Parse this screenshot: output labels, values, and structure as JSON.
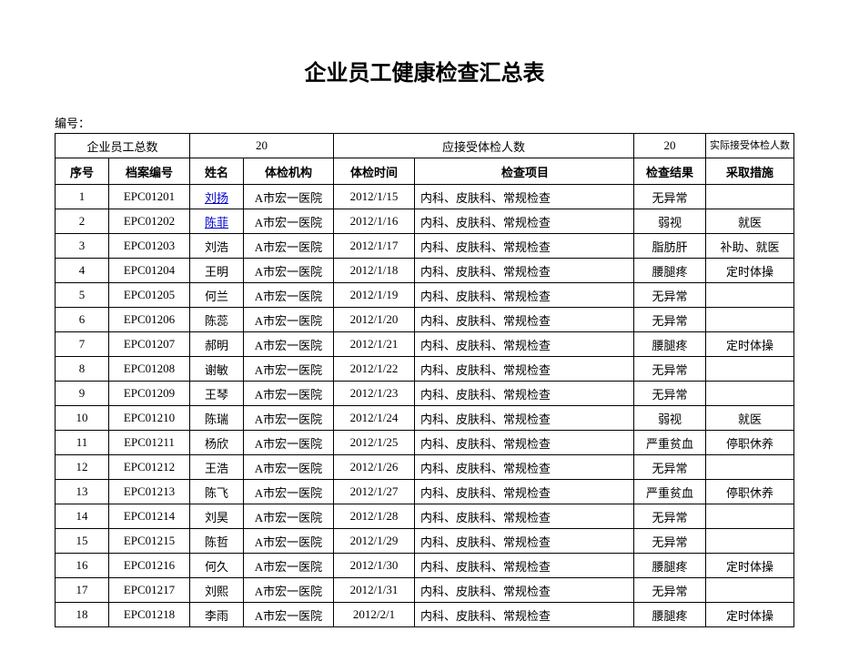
{
  "title": "企业员工健康检查汇总表",
  "doc_label": "编号：",
  "summary": {
    "total_employees_label": "企业员工总数",
    "total_employees_value": "20",
    "should_check_label": "应接受体检人数",
    "should_check_value": "20",
    "actual_check_label": "实际接受体检人数"
  },
  "headers": {
    "seq": "序号",
    "file_no": "档案编号",
    "name": "姓名",
    "org": "体检机构",
    "date": "体检时间",
    "items": "检查项目",
    "result": "检查结果",
    "action": "采取措施"
  },
  "rows": [
    {
      "seq": "1",
      "file_no": "EPC01201",
      "name": "刘扬",
      "is_link": true,
      "org": "A市宏一医院",
      "date": "2012/1/15",
      "items": "内科、皮肤科、常规检查",
      "result": "无异常",
      "action": ""
    },
    {
      "seq": "2",
      "file_no": "EPC01202",
      "name": "陈菲",
      "is_link": true,
      "org": "A市宏一医院",
      "date": "2012/1/16",
      "items": "内科、皮肤科、常规检查",
      "result": "弱视",
      "action": "就医"
    },
    {
      "seq": "3",
      "file_no": "EPC01203",
      "name": "刘浩",
      "is_link": false,
      "org": "A市宏一医院",
      "date": "2012/1/17",
      "items": "内科、皮肤科、常规检查",
      "result": "脂肪肝",
      "action": "补助、就医"
    },
    {
      "seq": "4",
      "file_no": "EPC01204",
      "name": "王明",
      "is_link": false,
      "org": "A市宏一医院",
      "date": "2012/1/18",
      "items": "内科、皮肤科、常规检查",
      "result": "腰腿疼",
      "action": "定时体操"
    },
    {
      "seq": "5",
      "file_no": "EPC01205",
      "name": "何兰",
      "is_link": false,
      "org": "A市宏一医院",
      "date": "2012/1/19",
      "items": "内科、皮肤科、常规检查",
      "result": "无异常",
      "action": ""
    },
    {
      "seq": "6",
      "file_no": "EPC01206",
      "name": "陈蕊",
      "is_link": false,
      "org": "A市宏一医院",
      "date": "2012/1/20",
      "items": "内科、皮肤科、常规检查",
      "result": "无异常",
      "action": ""
    },
    {
      "seq": "7",
      "file_no": "EPC01207",
      "name": "郝明",
      "is_link": false,
      "org": "A市宏一医院",
      "date": "2012/1/21",
      "items": "内科、皮肤科、常规检查",
      "result": "腰腿疼",
      "action": "定时体操"
    },
    {
      "seq": "8",
      "file_no": "EPC01208",
      "name": "谢敏",
      "is_link": false,
      "org": "A市宏一医院",
      "date": "2012/1/22",
      "items": "内科、皮肤科、常规检查",
      "result": "无异常",
      "action": ""
    },
    {
      "seq": "9",
      "file_no": "EPC01209",
      "name": "王琴",
      "is_link": false,
      "org": "A市宏一医院",
      "date": "2012/1/23",
      "items": "内科、皮肤科、常规检查",
      "result": "无异常",
      "action": ""
    },
    {
      "seq": "10",
      "file_no": "EPC01210",
      "name": "陈瑞",
      "is_link": false,
      "org": "A市宏一医院",
      "date": "2012/1/24",
      "items": "内科、皮肤科、常规检查",
      "result": "弱视",
      "action": "就医"
    },
    {
      "seq": "11",
      "file_no": "EPC01211",
      "name": "杨欣",
      "is_link": false,
      "org": "A市宏一医院",
      "date": "2012/1/25",
      "items": "内科、皮肤科、常规检查",
      "result": "严重贫血",
      "action": "停职休养"
    },
    {
      "seq": "12",
      "file_no": "EPC01212",
      "name": "王浩",
      "is_link": false,
      "org": "A市宏一医院",
      "date": "2012/1/26",
      "items": "内科、皮肤科、常规检查",
      "result": "无异常",
      "action": ""
    },
    {
      "seq": "13",
      "file_no": "EPC01213",
      "name": "陈飞",
      "is_link": false,
      "org": "A市宏一医院",
      "date": "2012/1/27",
      "items": "内科、皮肤科、常规检查",
      "result": "严重贫血",
      "action": "停职休养"
    },
    {
      "seq": "14",
      "file_no": "EPC01214",
      "name": "刘昊",
      "is_link": false,
      "org": "A市宏一医院",
      "date": "2012/1/28",
      "items": "内科、皮肤科、常规检查",
      "result": "无异常",
      "action": ""
    },
    {
      "seq": "15",
      "file_no": "EPC01215",
      "name": "陈哲",
      "is_link": false,
      "org": "A市宏一医院",
      "date": "2012/1/29",
      "items": "内科、皮肤科、常规检查",
      "result": "无异常",
      "action": ""
    },
    {
      "seq": "16",
      "file_no": "EPC01216",
      "name": "何久",
      "is_link": false,
      "org": "A市宏一医院",
      "date": "2012/1/30",
      "items": "内科、皮肤科、常规检查",
      "result": "腰腿疼",
      "action": "定时体操"
    },
    {
      "seq": "17",
      "file_no": "EPC01217",
      "name": "刘熙",
      "is_link": false,
      "org": "A市宏一医院",
      "date": "2012/1/31",
      "items": "内科、皮肤科、常规检查",
      "result": "无异常",
      "action": ""
    },
    {
      "seq": "18",
      "file_no": "EPC01218",
      "name": "李雨",
      "is_link": false,
      "org": "A市宏一医院",
      "date": "2012/2/1",
      "items": "内科、皮肤科、常规检查",
      "result": "腰腿疼",
      "action": "定时体操"
    }
  ],
  "styling": {
    "background_color": "#ffffff",
    "text_color": "#000000",
    "border_color": "#000000",
    "link_color": "#0000cc",
    "title_fontsize": 24,
    "body_fontsize": 13
  }
}
